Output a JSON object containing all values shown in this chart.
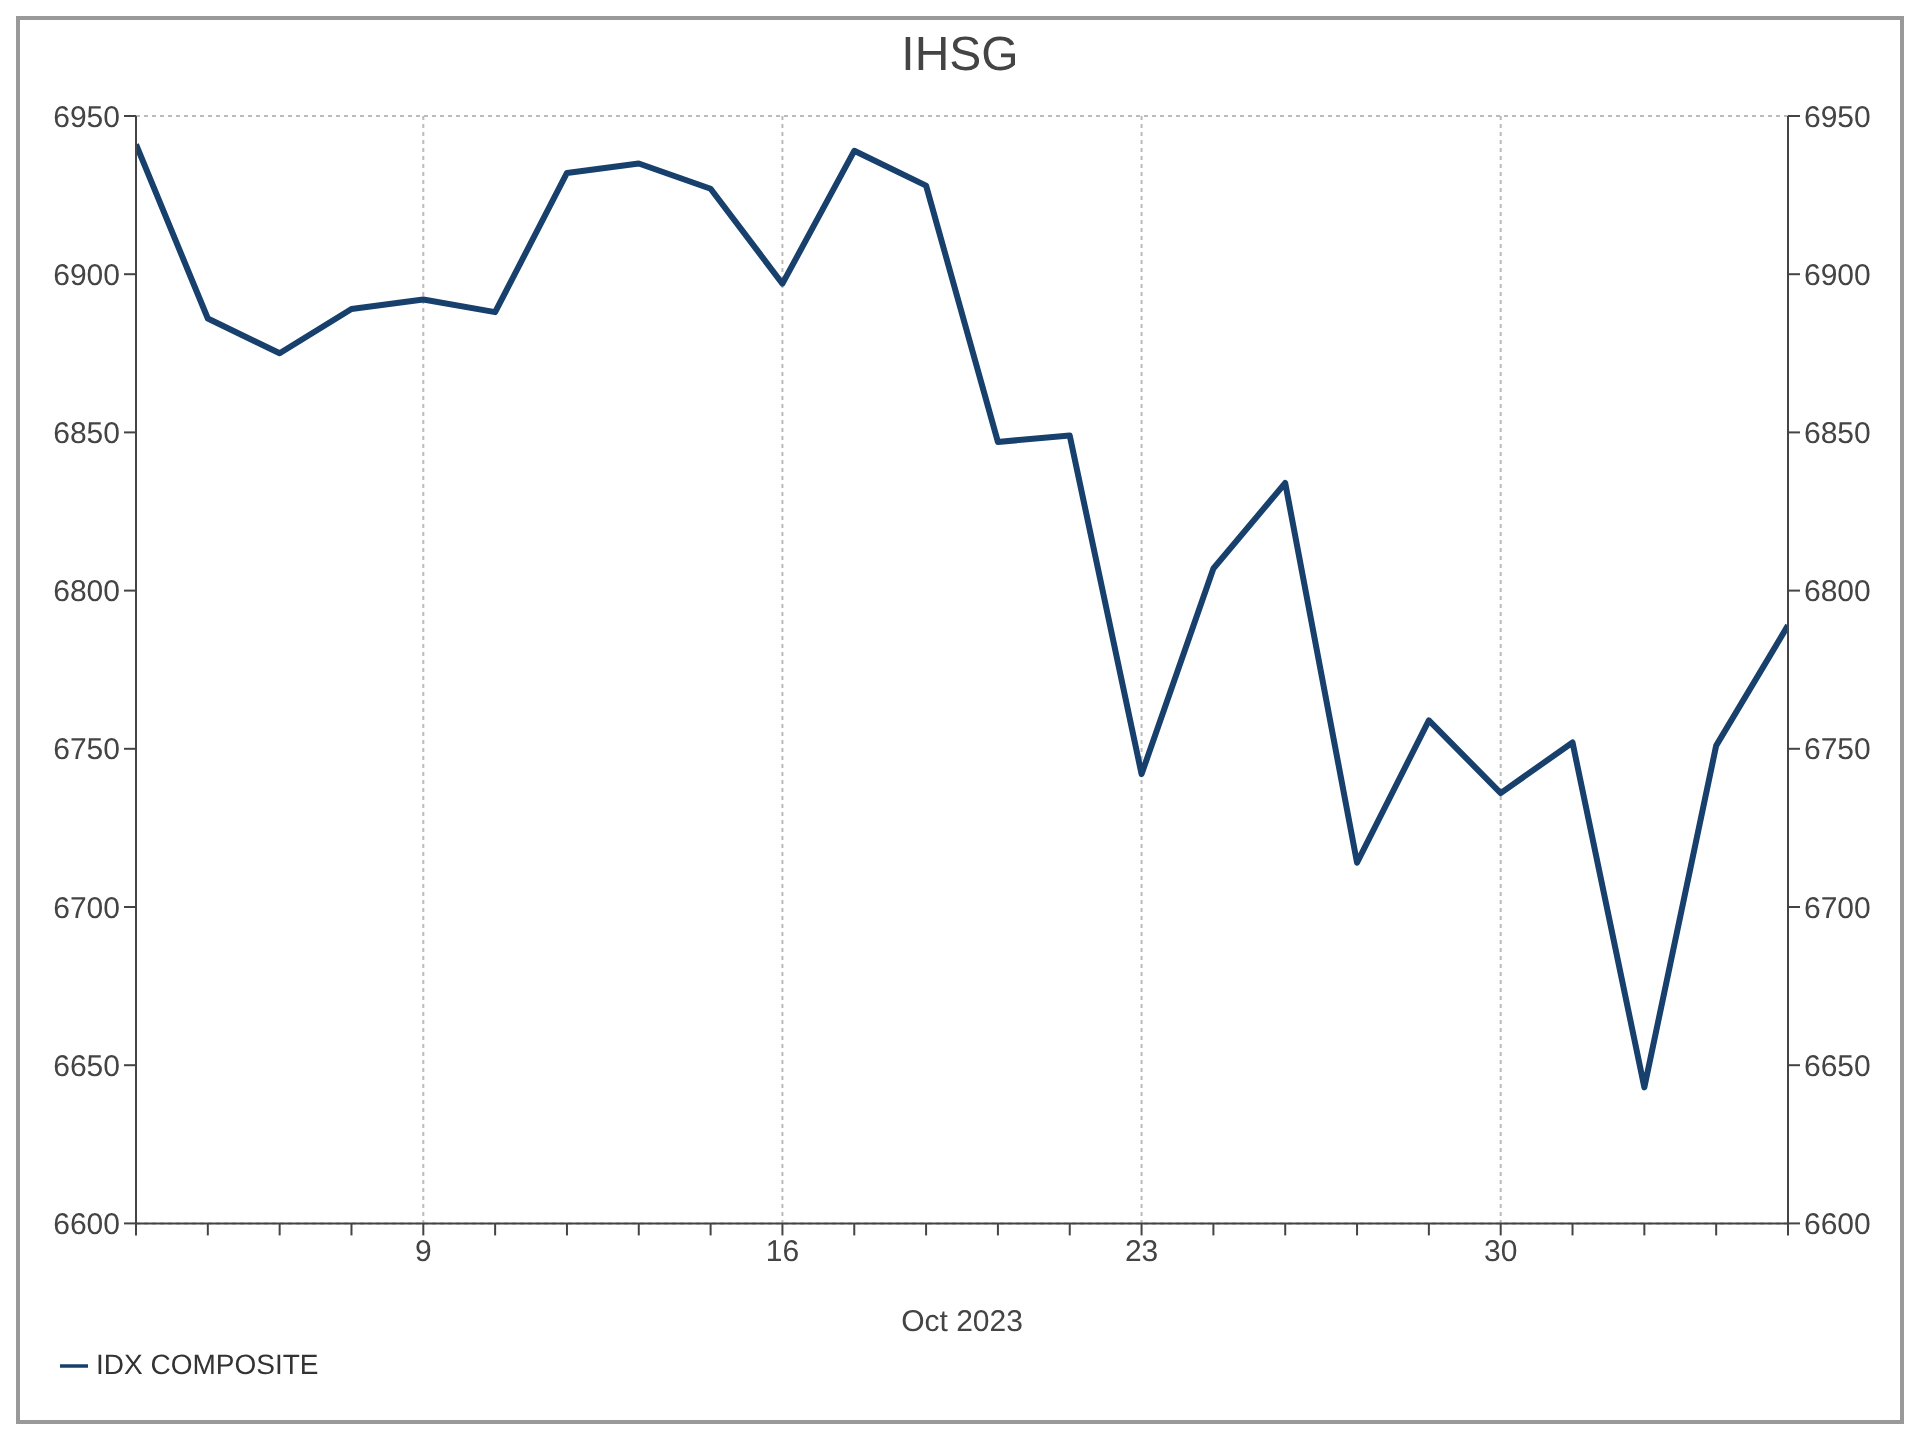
{
  "chart_data": {
    "type": "line",
    "title": "IHSG",
    "xlabel": "Oct 2023",
    "categories": [
      null,
      null,
      null,
      null,
      "9",
      null,
      null,
      null,
      null,
      "16",
      null,
      null,
      null,
      null,
      "23",
      null,
      null,
      null,
      null,
      "30",
      null,
      null,
      null,
      null
    ],
    "series": [
      {
        "name": "IDX COMPOSITE",
        "color": "#17406d",
        "values": [
          6941,
          6886,
          6875,
          6889,
          6892,
          6888,
          6932,
          6935,
          6927,
          6897,
          6939,
          6928,
          6847,
          6849,
          6742,
          6807,
          6834,
          6714,
          6759,
          6736,
          6752,
          6643,
          6751,
          6789
        ]
      }
    ],
    "ylim": [
      6600,
      6950
    ],
    "yticks": [
      6600,
      6650,
      6700,
      6750,
      6800,
      6850,
      6900,
      6950
    ],
    "y2lim": [
      6600,
      6950
    ],
    "y2ticks": [
      6600,
      6650,
      6700,
      6750,
      6800,
      6850,
      6900,
      6950
    ],
    "grid": true,
    "legend": "bottom left",
    "marker": "none",
    "line_style": "solid"
  }
}
